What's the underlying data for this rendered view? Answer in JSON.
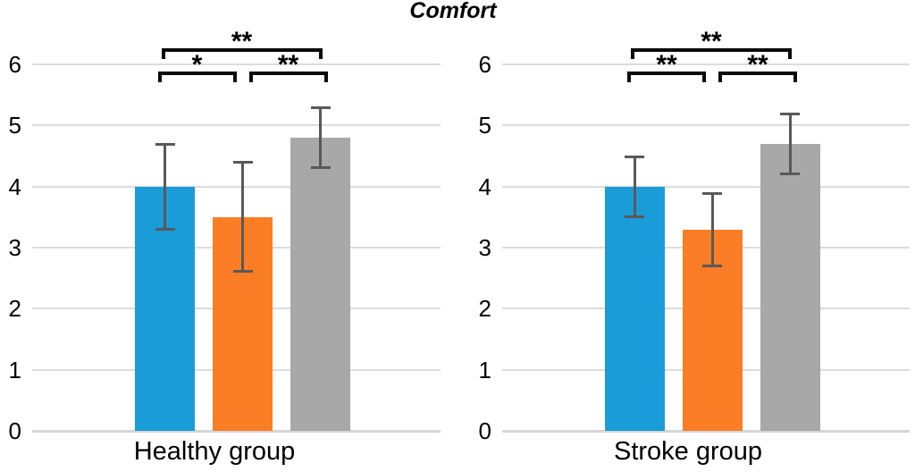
{
  "title": "Comfort",
  "colors": {
    "bar_blue": "#1A9CD9",
    "bar_orange": "#FB7D26",
    "bar_gray": "#A8A8A8",
    "error_bar": "#595959",
    "gridline": "#DCDCDC",
    "axis_line": "#D6D6D6",
    "text": "#000000"
  },
  "chart_data": [
    {
      "type": "bar",
      "group_label": "Healthy group",
      "y_axis": {
        "min": 0,
        "max": 6,
        "ticks": [
          0,
          1,
          2,
          3,
          4,
          5,
          6
        ]
      },
      "grid": true,
      "bars": [
        {
          "series": "blue",
          "value": 4.0,
          "error_low": 3.3,
          "error_high": 4.7
        },
        {
          "series": "orange",
          "value": 3.5,
          "error_low": 2.6,
          "error_high": 4.4
        },
        {
          "series": "gray",
          "value": 4.8,
          "error_low": 4.3,
          "error_high": 5.3
        }
      ],
      "significance": [
        {
          "from": 0,
          "to": 2,
          "label": "**",
          "level": "top"
        },
        {
          "from": 0,
          "to": 1,
          "label": "*",
          "level": "low"
        },
        {
          "from": 1,
          "to": 2,
          "label": "**",
          "level": "low"
        }
      ]
    },
    {
      "type": "bar",
      "group_label": "Stroke group",
      "y_axis": {
        "min": 0,
        "max": 6,
        "ticks": [
          0,
          1,
          2,
          3,
          4,
          5,
          6
        ]
      },
      "grid": true,
      "bars": [
        {
          "series": "blue",
          "value": 4.0,
          "error_low": 3.5,
          "error_high": 4.5
        },
        {
          "series": "orange",
          "value": 3.3,
          "error_low": 2.7,
          "error_high": 3.9
        },
        {
          "series": "gray",
          "value": 4.7,
          "error_low": 4.2,
          "error_high": 5.2
        }
      ],
      "significance": [
        {
          "from": 0,
          "to": 2,
          "label": "**",
          "level": "top"
        },
        {
          "from": 0,
          "to": 1,
          "label": "**",
          "level": "low"
        },
        {
          "from": 1,
          "to": 2,
          "label": "**",
          "level": "low"
        }
      ]
    }
  ]
}
